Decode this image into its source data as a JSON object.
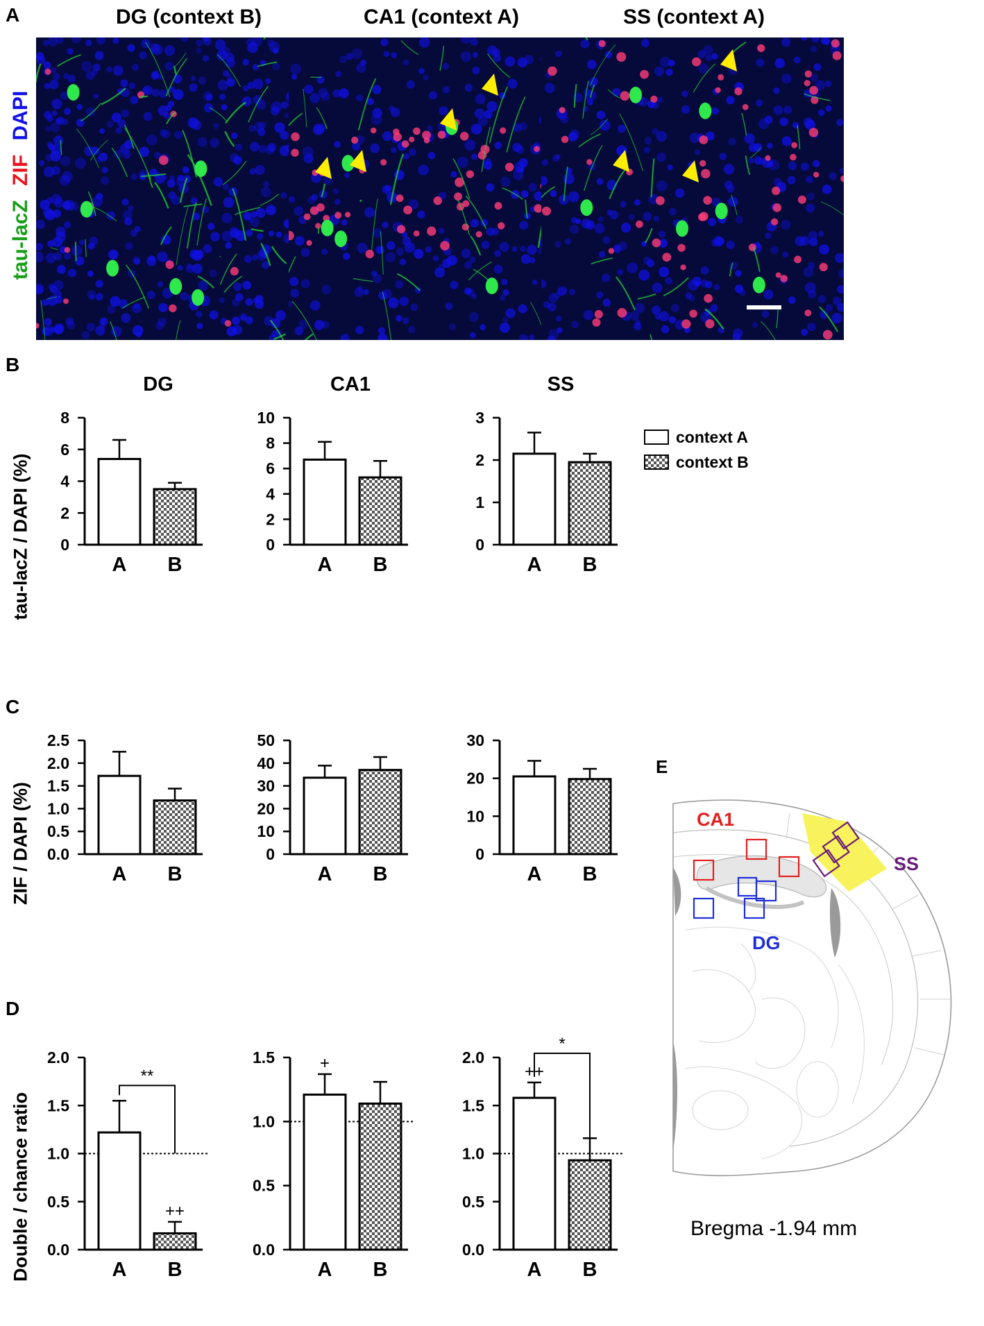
{
  "panel_letters": {
    "a": "A",
    "b": "B",
    "c": "C",
    "d": "D",
    "e": "E"
  },
  "panel_a": {
    "titles": [
      "DG  (context B)",
      "CA1 (context A)",
      "SS (context A)"
    ],
    "stain_labels": {
      "tau": "tau-lacZ",
      "zif": "ZIF",
      "dapi": "DAPI"
    },
    "colors": {
      "tau": "#1a9e1a",
      "zif": "#e8141e",
      "dapi": "#1010e6",
      "arrow": "#ffee00"
    }
  },
  "row_labels": {
    "b": "tau-lacZ / DAPI (%)",
    "c": "ZIF / DAPI (%)",
    "d": "Double / chance ratio"
  },
  "column_titles": [
    "DG",
    "CA1",
    "SS"
  ],
  "legend": {
    "context_a": "context A",
    "context_b": "context B"
  },
  "panel_e": {
    "labels": {
      "ca1": "CA1",
      "dg": "DG",
      "ss": "SS"
    },
    "caption": "Bregma -1.94 mm",
    "colors": {
      "ca1": "#e0201e",
      "dg": "#1d2ed6",
      "ss": "#6a1a7a",
      "ss_region": "#f8f35c"
    }
  },
  "chart_data": [
    {
      "id": "b-dg",
      "row": "B",
      "type": "bar",
      "title": "DG",
      "categories": [
        "A",
        "B"
      ],
      "values": [
        5.4,
        3.5
      ],
      "errors": [
        1.2,
        0.4
      ],
      "ylim": [
        0,
        8
      ],
      "yticks": [
        0,
        2,
        4,
        6,
        8
      ],
      "ylabel": "tau-lacZ / DAPI (%)"
    },
    {
      "id": "b-ca1",
      "row": "B",
      "type": "bar",
      "title": "CA1",
      "categories": [
        "A",
        "B"
      ],
      "values": [
        6.7,
        5.3
      ],
      "errors": [
        1.4,
        1.3
      ],
      "ylim": [
        0,
        10
      ],
      "yticks": [
        0,
        2,
        4,
        6,
        8,
        10
      ]
    },
    {
      "id": "b-ss",
      "row": "B",
      "type": "bar",
      "title": "SS",
      "categories": [
        "A",
        "B"
      ],
      "values": [
        2.15,
        1.95
      ],
      "errors": [
        0.5,
        0.2
      ],
      "ylim": [
        0,
        3
      ],
      "yticks": [
        0,
        1,
        2,
        3
      ]
    },
    {
      "id": "c-dg",
      "row": "C",
      "type": "bar",
      "categories": [
        "A",
        "B"
      ],
      "values": [
        1.72,
        1.18
      ],
      "errors": [
        0.53,
        0.26
      ],
      "ylim": [
        0,
        2.5
      ],
      "yticks": [
        "0.0",
        "0.5",
        "1.0",
        "1.5",
        "2.0",
        "2.5"
      ],
      "ylabel": "ZIF / DAPI (%)"
    },
    {
      "id": "c-ca1",
      "row": "C",
      "type": "bar",
      "categories": [
        "A",
        "B"
      ],
      "values": [
        33.6,
        37.0
      ],
      "errors": [
        5.3,
        5.7
      ],
      "ylim": [
        0,
        50
      ],
      "yticks": [
        "0",
        "10",
        "20",
        "30",
        "40",
        "50"
      ]
    },
    {
      "id": "c-ss",
      "row": "C",
      "type": "bar",
      "categories": [
        "A",
        "B"
      ],
      "values": [
        20.5,
        19.8
      ],
      "errors": [
        4.1,
        2.7
      ],
      "ylim": [
        0,
        30
      ],
      "yticks": [
        "0",
        "10",
        "20",
        "30"
      ]
    },
    {
      "id": "d-dg",
      "row": "D",
      "type": "bar",
      "categories": [
        "A",
        "B"
      ],
      "values": [
        1.22,
        0.17
      ],
      "errors": [
        0.33,
        0.12
      ],
      "ylim": [
        0,
        2.0
      ],
      "yticks": [
        "0.0",
        "0.5",
        "1.0",
        "1.5",
        "2.0"
      ],
      "ylabel": "Double / chance ratio",
      "reference_line": 1.0,
      "annotations": {
        "bar_marks": [
          "",
          "++"
        ],
        "bracket": "**"
      }
    },
    {
      "id": "d-ca1",
      "row": "D",
      "type": "bar",
      "categories": [
        "A",
        "B"
      ],
      "values": [
        1.21,
        1.14
      ],
      "errors": [
        0.16,
        0.17
      ],
      "ylim": [
        0,
        1.5
      ],
      "yticks": [
        "0.0",
        "0.5",
        "1.0",
        "1.5"
      ],
      "reference_line": 1.0,
      "annotations": {
        "bar_marks": [
          "+",
          ""
        ],
        "bracket": ""
      }
    },
    {
      "id": "d-ss",
      "row": "D",
      "type": "bar",
      "categories": [
        "A",
        "B"
      ],
      "values": [
        1.58,
        0.93
      ],
      "errors": [
        0.16,
        0.23
      ],
      "ylim": [
        0,
        2.0
      ],
      "yticks": [
        "0.0",
        "0.5",
        "1.0",
        "1.5",
        "2.0"
      ],
      "reference_line": 1.0,
      "annotations": {
        "bar_marks": [
          "++",
          ""
        ],
        "bracket": "*"
      }
    }
  ]
}
